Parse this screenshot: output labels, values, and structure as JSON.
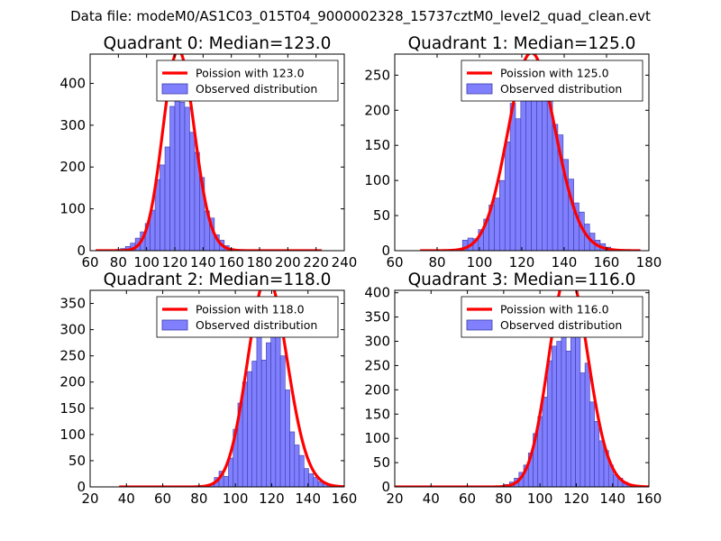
{
  "suptitle": "Data file: modeM0/AS1C03_015T04_9000002328_15737cztM0_level2_quad_clean.evt",
  "colors": {
    "bar_fill": "#8080ff",
    "bar_edge": "#3a3aa8",
    "curve": "#ff0000",
    "axes": "#000000",
    "background": "#ffffff"
  },
  "chart_data": [
    {
      "type": "bar",
      "title": "Quadrant 0: Median=123.0",
      "legend": [
        "Poission with 123.0",
        "Observed distribution"
      ],
      "legend_location": "upper-right",
      "xlim": [
        60,
        240
      ],
      "ylim": [
        0,
        470
      ],
      "xticks": [
        60,
        80,
        100,
        120,
        140,
        160,
        180,
        200,
        220,
        240
      ],
      "yticks": [
        0,
        100,
        200,
        300,
        400
      ],
      "xlabel": "",
      "ylabel": "",
      "bin_width": 3.5,
      "bins": [
        [
          64,
          1
        ],
        [
          67.5,
          1
        ],
        [
          71,
          2
        ],
        [
          74.5,
          2
        ],
        [
          78,
          3
        ],
        [
          81.5,
          5
        ],
        [
          85,
          10
        ],
        [
          88.5,
          18
        ],
        [
          92,
          30
        ],
        [
          95.5,
          45
        ],
        [
          99,
          65
        ],
        [
          102.5,
          97
        ],
        [
          106,
          170
        ],
        [
          109.5,
          205
        ],
        [
          113,
          248
        ],
        [
          116.5,
          345
        ],
        [
          120,
          433
        ],
        [
          123.5,
          355
        ],
        [
          127,
          343
        ],
        [
          130.5,
          283
        ],
        [
          134,
          235
        ],
        [
          137.5,
          175
        ],
        [
          141,
          95
        ],
        [
          144.5,
          78
        ],
        [
          148,
          38
        ],
        [
          151.5,
          25
        ],
        [
          155,
          12
        ],
        [
          158.5,
          5
        ],
        [
          162,
          3
        ],
        [
          165.5,
          2
        ],
        [
          169,
          1
        ]
      ],
      "poisson": {
        "mean": 123.0,
        "total": 3810,
        "bin_width": 3.5,
        "x_range": [
          64,
          224
        ]
      }
    },
    {
      "type": "bar",
      "title": "Quadrant 1: Median=125.0",
      "legend": [
        "Poission with 125.0",
        "Observed distribution"
      ],
      "legend_location": "upper-right",
      "xlim": [
        60,
        180
      ],
      "ylim": [
        0,
        280
      ],
      "xticks": [
        60,
        80,
        100,
        120,
        140,
        160,
        180
      ],
      "yticks": [
        0,
        50,
        100,
        150,
        200,
        250
      ],
      "xlabel": "",
      "ylabel": "",
      "bin_width": 2.5,
      "bins": [
        [
          92,
          15
        ],
        [
          94.5,
          18
        ],
        [
          97,
          17
        ],
        [
          99.5,
          30
        ],
        [
          102,
          45
        ],
        [
          104.5,
          65
        ],
        [
          107,
          75
        ],
        [
          109.5,
          100
        ],
        [
          112,
          155
        ],
        [
          114.5,
          210
        ],
        [
          117,
          188
        ],
        [
          119.5,
          250
        ],
        [
          122,
          253
        ],
        [
          124.5,
          225
        ],
        [
          127,
          230
        ],
        [
          129.5,
          225
        ],
        [
          132,
          258
        ],
        [
          134.5,
          180
        ],
        [
          137,
          165
        ],
        [
          139.5,
          130
        ],
        [
          142,
          102
        ],
        [
          144.5,
          68
        ],
        [
          147,
          55
        ],
        [
          149.5,
          38
        ],
        [
          152,
          25
        ],
        [
          154.5,
          15
        ],
        [
          157,
          10
        ],
        [
          159.5,
          5
        ]
      ],
      "poisson": {
        "mean": 125.0,
        "total": 3160,
        "bin_width": 2.5,
        "x_range": [
          72,
          176
        ]
      }
    },
    {
      "type": "bar",
      "title": "Quadrant 2: Median=118.0",
      "legend": [
        "Poission with 118.0",
        "Observed distribution"
      ],
      "legend_location": "upper-right",
      "xlim": [
        20,
        160
      ],
      "ylim": [
        0,
        375
      ],
      "xticks": [
        20,
        40,
        60,
        80,
        100,
        120,
        140,
        160
      ],
      "yticks": [
        0,
        50,
        100,
        150,
        200,
        250,
        300,
        350
      ],
      "xlabel": "",
      "ylabel": "",
      "bin_width": 2.6,
      "bins": [
        [
          85.8,
          5
        ],
        [
          88.4,
          18
        ],
        [
          91,
          30
        ],
        [
          93.6,
          20
        ],
        [
          96.2,
          55
        ],
        [
          98.8,
          110
        ],
        [
          101.4,
          160
        ],
        [
          104,
          200
        ],
        [
          106.6,
          220
        ],
        [
          109.2,
          240
        ],
        [
          111.8,
          295
        ],
        [
          114.4,
          242
        ],
        [
          117,
          275
        ],
        [
          119.6,
          320
        ],
        [
          122.2,
          305
        ],
        [
          124.8,
          250
        ],
        [
          127.4,
          185
        ],
        [
          130,
          105
        ],
        [
          132.6,
          80
        ],
        [
          135.2,
          60
        ],
        [
          137.8,
          35
        ],
        [
          140.4,
          25
        ],
        [
          143,
          18
        ],
        [
          145.6,
          10
        ],
        [
          148.2,
          8
        ],
        [
          150.8,
          3
        ]
      ],
      "poisson": {
        "mean": 118.0,
        "total": 4190,
        "bin_width": 2.6,
        "x_range": [
          36,
          160
        ]
      }
    },
    {
      "type": "bar",
      "title": "Quadrant 3: Median=116.0",
      "legend": [
        "Poission with 116.0",
        "Observed distribution"
      ],
      "legend_location": "upper-right",
      "xlim": [
        20,
        160
      ],
      "ylim": [
        0,
        405
      ],
      "xticks": [
        20,
        40,
        60,
        80,
        100,
        120,
        140,
        160
      ],
      "yticks": [
        0,
        50,
        100,
        150,
        200,
        250,
        300,
        350,
        400
      ],
      "xlabel": "",
      "ylabel": "",
      "bin_width": 2.6,
      "bins": [
        [
          80.6,
          5
        ],
        [
          83.2,
          10
        ],
        [
          85.8,
          18
        ],
        [
          88.4,
          30
        ],
        [
          91,
          45
        ],
        [
          93.6,
          70
        ],
        [
          96.2,
          110
        ],
        [
          98.8,
          145
        ],
        [
          101.4,
          185
        ],
        [
          104,
          260
        ],
        [
          106.6,
          290
        ],
        [
          109.2,
          300
        ],
        [
          111.8,
          335
        ],
        [
          114.4,
          280
        ],
        [
          117,
          350
        ],
        [
          119.6,
          340
        ],
        [
          122.2,
          235
        ],
        [
          124.8,
          255
        ],
        [
          127.4,
          175
        ],
        [
          130,
          135
        ],
        [
          132.6,
          95
        ],
        [
          135.2,
          75
        ],
        [
          137.8,
          45
        ],
        [
          140.4,
          25
        ],
        [
          143,
          18
        ],
        [
          145.6,
          10
        ],
        [
          148.2,
          5
        ]
      ],
      "poisson": {
        "mean": 116.0,
        "total": 4600,
        "bin_width": 2.6,
        "x_range": [
          20,
          160
        ]
      }
    }
  ]
}
